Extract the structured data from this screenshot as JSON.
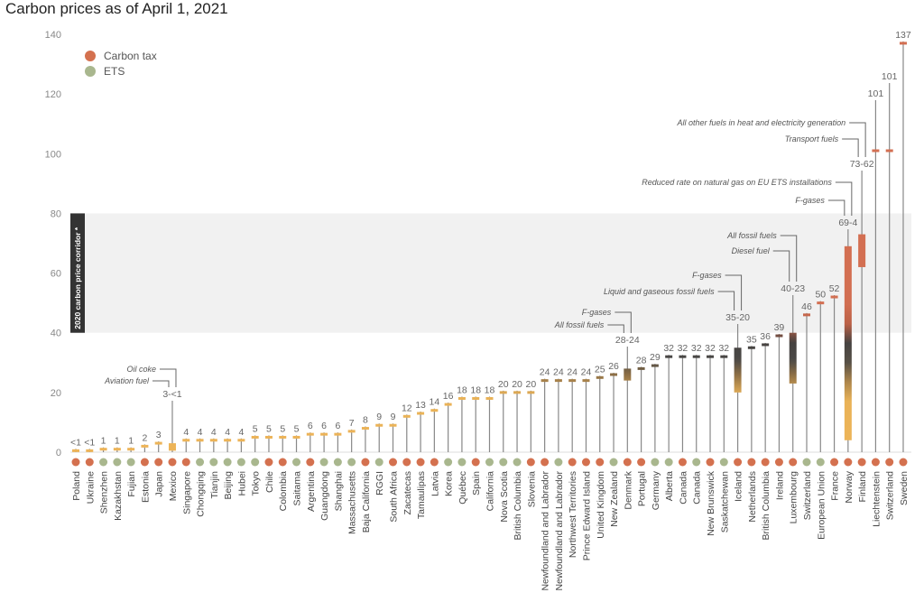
{
  "chart_data": {
    "type": "bar",
    "title": "Carbon prices as of April 1, 2021",
    "xlabel": "",
    "ylabel": "",
    "ylim": [
      0,
      140
    ],
    "yticks": [
      0,
      20,
      40,
      60,
      80,
      100,
      120,
      140
    ],
    "grid": false,
    "legend": {
      "position": "top-left",
      "entries": [
        {
          "key": "tax",
          "label": "Carbon tax",
          "color": "#D4714F"
        },
        {
          "key": "ets",
          "label": "ETS",
          "color": "#A9B78E"
        }
      ]
    },
    "corridor": {
      "label": "2020 carbon price corridor *",
      "range": [
        40,
        80
      ]
    },
    "items": [
      {
        "name": "Poland",
        "type": "tax",
        "label": "<1",
        "value": 0.5
      },
      {
        "name": "Ukraine",
        "type": "tax",
        "label": "<1",
        "value": 0.5
      },
      {
        "name": "Shenzhen",
        "type": "ets",
        "label": "1",
        "value": 1
      },
      {
        "name": "Kazakhstan",
        "type": "ets",
        "label": "1",
        "value": 1
      },
      {
        "name": "Fujian",
        "type": "ets",
        "label": "1",
        "value": 1
      },
      {
        "name": "Estonia",
        "type": "tax",
        "label": "2",
        "value": 2
      },
      {
        "name": "Japan",
        "type": "tax",
        "label": "3",
        "value": 3
      },
      {
        "name": "Mexico",
        "type": "tax",
        "label": "3-<1",
        "lo": 0.5,
        "hi": 3,
        "annotations": [
          "Aviation fuel",
          "Oil coke"
        ]
      },
      {
        "name": "Singapore",
        "type": "tax",
        "label": "4",
        "value": 4
      },
      {
        "name": "Chongqing",
        "type": "ets",
        "label": "4",
        "value": 4
      },
      {
        "name": "Tianjin",
        "type": "ets",
        "label": "4",
        "value": 4
      },
      {
        "name": "Beijing",
        "type": "ets",
        "label": "4",
        "value": 4
      },
      {
        "name": "Hubei",
        "type": "ets",
        "label": "4",
        "value": 4
      },
      {
        "name": "Tokyo",
        "type": "ets",
        "label": "5",
        "value": 5
      },
      {
        "name": "Chile",
        "type": "tax",
        "label": "5",
        "value": 5
      },
      {
        "name": "Colombia",
        "type": "tax",
        "label": "5",
        "value": 5
      },
      {
        "name": "Saitama",
        "type": "ets",
        "label": "5",
        "value": 5
      },
      {
        "name": "Argentina",
        "type": "tax",
        "label": "6",
        "value": 6
      },
      {
        "name": "Guangdong",
        "type": "ets",
        "label": "6",
        "value": 6
      },
      {
        "name": "Shanghai",
        "type": "ets",
        "label": "6",
        "value": 6
      },
      {
        "name": "Massachusetts",
        "type": "ets",
        "label": "7",
        "value": 7
      },
      {
        "name": "Baja California",
        "type": "tax",
        "label": "8",
        "value": 8
      },
      {
        "name": "RGGI",
        "type": "ets",
        "label": "9",
        "value": 9
      },
      {
        "name": "South Africa",
        "type": "tax",
        "label": "9",
        "value": 9
      },
      {
        "name": "Zacatecas",
        "type": "tax",
        "label": "12",
        "value": 12
      },
      {
        "name": "Tamaulipas",
        "type": "tax",
        "label": "13",
        "value": 13
      },
      {
        "name": "Latvia",
        "type": "tax",
        "label": "14",
        "value": 14
      },
      {
        "name": "Korea",
        "type": "ets",
        "label": "16",
        "value": 16
      },
      {
        "name": "Québec",
        "type": "ets",
        "label": "18",
        "value": 18
      },
      {
        "name": "Spain",
        "type": "tax",
        "label": "18",
        "value": 18
      },
      {
        "name": "California",
        "type": "ets",
        "label": "18",
        "value": 18
      },
      {
        "name": "Nova Scotia",
        "type": "ets",
        "label": "20",
        "value": 20
      },
      {
        "name": "British Columbia",
        "type": "ets",
        "label": "20",
        "value": 20
      },
      {
        "name": "Slovenia",
        "type": "tax",
        "label": "20",
        "value": 20
      },
      {
        "name": "Newfoundland and Labrador",
        "type": "tax",
        "label": "24",
        "value": 24
      },
      {
        "name": "Newfoundland and Labrador",
        "type": "ets",
        "label": "24",
        "value": 24
      },
      {
        "name": "Northwest Territories",
        "type": "tax",
        "label": "24",
        "value": 24
      },
      {
        "name": "Prince Edward Island",
        "type": "tax",
        "label": "24",
        "value": 24
      },
      {
        "name": "United Kingdom",
        "type": "tax",
        "label": "25",
        "value": 25
      },
      {
        "name": "New Zealand",
        "type": "ets",
        "label": "26",
        "value": 26
      },
      {
        "name": "Denmark",
        "type": "tax",
        "label": "28-24",
        "lo": 24,
        "hi": 28,
        "annotations": [
          "All fossil fuels",
          "F-gases"
        ]
      },
      {
        "name": "Portugal",
        "type": "tax",
        "label": "28",
        "value": 28
      },
      {
        "name": "Germany",
        "type": "ets",
        "label": "29",
        "value": 29
      },
      {
        "name": "Alberta",
        "type": "ets",
        "label": "32",
        "value": 32
      },
      {
        "name": "Canada",
        "type": "tax",
        "label": "32",
        "value": 32
      },
      {
        "name": "Canada",
        "type": "ets",
        "label": "32",
        "value": 32
      },
      {
        "name": "New Brunswick",
        "type": "tax",
        "label": "32",
        "value": 32
      },
      {
        "name": "Saskatchewan",
        "type": "ets",
        "label": "32",
        "value": 32
      },
      {
        "name": "Iceland",
        "type": "tax",
        "label": "35-20",
        "lo": 20,
        "hi": 35,
        "annotations": [
          "Liquid and gaseous fossil fuels",
          "F-gases"
        ]
      },
      {
        "name": "Netherlands",
        "type": "tax",
        "label": "35",
        "value": 35
      },
      {
        "name": "British Columbia",
        "type": "tax",
        "label": "36",
        "value": 36
      },
      {
        "name": "Ireland",
        "type": "tax",
        "label": "39",
        "value": 39
      },
      {
        "name": "Luxembourg",
        "type": "tax",
        "label": "40-23",
        "lo": 23,
        "hi": 40,
        "annotations": [
          "Diesel fuel",
          "All fossil fuels"
        ]
      },
      {
        "name": "Switzerland",
        "type": "ets",
        "label": "46",
        "value": 46
      },
      {
        "name": "European Union",
        "type": "ets",
        "label": "50",
        "value": 50
      },
      {
        "name": "France",
        "type": "tax",
        "label": "52",
        "value": 52
      },
      {
        "name": "Norway",
        "type": "tax",
        "label": "69-4",
        "lo": 4,
        "hi": 69,
        "annotations": [
          "F-gases",
          "Reduced rate on natural gas on EU ETS installations"
        ]
      },
      {
        "name": "Finland",
        "type": "tax",
        "label": "73-62",
        "lo": 62,
        "hi": 73,
        "annotations": [
          "Transport fuels",
          "All other fuels in heat and electricity generation"
        ]
      },
      {
        "name": "Liechtenstein",
        "type": "tax",
        "label": "101",
        "value": 101
      },
      {
        "name": "Switzerland",
        "type": "tax",
        "label": "101",
        "value": 101
      },
      {
        "name": "Sweden",
        "type": "tax",
        "label": "137",
        "value": 137
      }
    ]
  }
}
